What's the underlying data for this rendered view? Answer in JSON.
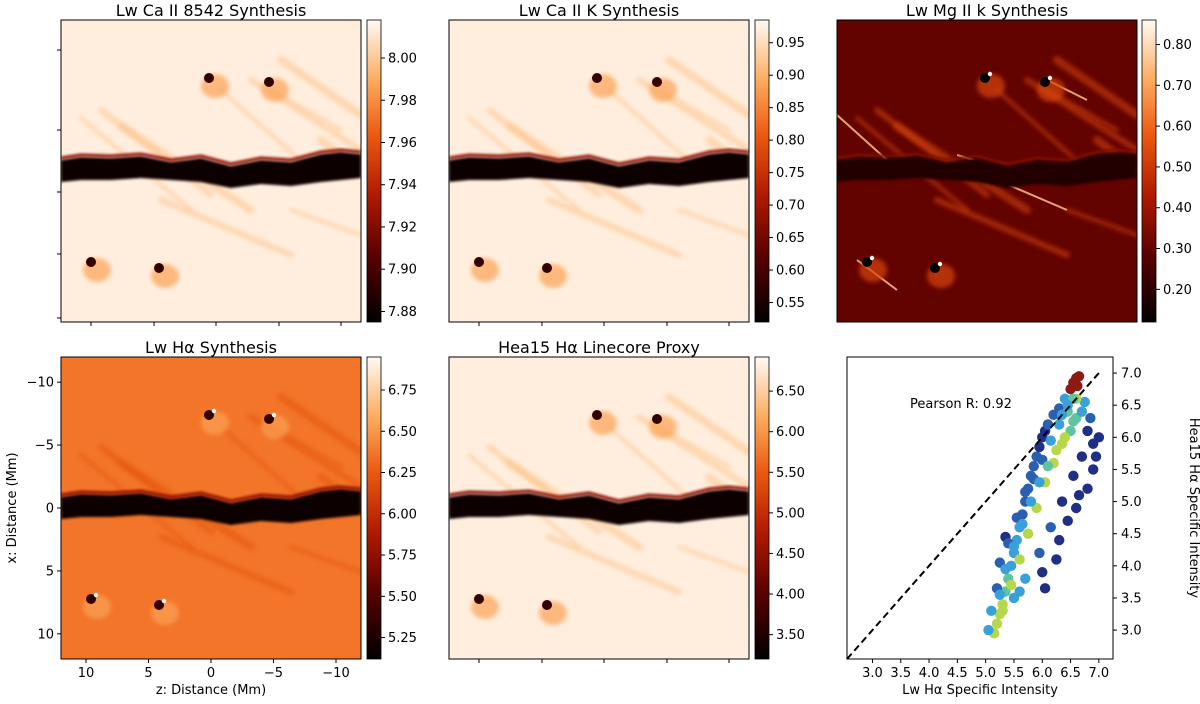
{
  "figure": {
    "colors": {
      "map_low": "#000000",
      "map_mid1": "#8b0000",
      "map_mid2": "#e0400a",
      "map_mid3": "#fd9a3c",
      "map_high": "#fff8f0",
      "dash": "#000000"
    }
  },
  "chart_data": [
    {
      "type": "heatmap",
      "title": "Lw Ca II 8542 Synthesis",
      "colorbar": {
        "range": [
          7.875,
          8.018
        ],
        "ticks": [
          "8.00",
          "7.98",
          "7.96",
          "7.94",
          "7.92",
          "7.90",
          "7.88"
        ],
        "tick_values": [
          8.0,
          7.98,
          7.96,
          7.94,
          7.92,
          7.9,
          7.88
        ]
      },
      "background_level": 0.97
    },
    {
      "type": "heatmap",
      "title": "Lw Ca II K Synthesis",
      "colorbar": {
        "range": [
          0.52,
          0.985
        ],
        "ticks": [
          "0.95",
          "0.90",
          "0.85",
          "0.80",
          "0.75",
          "0.70",
          "0.65",
          "0.60",
          "0.55"
        ],
        "tick_values": [
          0.95,
          0.9,
          0.85,
          0.8,
          0.75,
          0.7,
          0.65,
          0.6,
          0.55
        ]
      },
      "background_level": 0.97
    },
    {
      "type": "heatmap",
      "title": "Lw Mg II k Synthesis",
      "colorbar": {
        "range": [
          0.12,
          0.86
        ],
        "ticks": [
          "0.80",
          "0.70",
          "0.60",
          "0.50",
          "0.40",
          "0.30",
          "0.20"
        ],
        "tick_values": [
          0.8,
          0.7,
          0.6,
          0.5,
          0.4,
          0.3,
          0.2
        ]
      },
      "background_level": 0.24
    },
    {
      "type": "heatmap",
      "title": "Lw Hα Synthesis",
      "xlabel": "z: Distance (Mm)",
      "ylabel": "x: Distance (Mm)",
      "xlim": [
        12,
        -12
      ],
      "ylim": [
        12,
        -12
      ],
      "xticks": [
        "10",
        "5",
        "0",
        "−5",
        "−10"
      ],
      "xtick_values": [
        10,
        5,
        0,
        -5,
        -10
      ],
      "yticks": [
        "−10",
        "−5",
        "0",
        "5",
        "10"
      ],
      "ytick_values": [
        -10,
        -5,
        0,
        5,
        10
      ],
      "colorbar": {
        "range": [
          5.12,
          6.95
        ],
        "ticks": [
          "6.75",
          "6.50",
          "6.25",
          "6.00",
          "5.75",
          "5.50",
          "5.25"
        ],
        "tick_values": [
          6.75,
          6.5,
          6.25,
          6.0,
          5.75,
          5.5,
          5.25
        ]
      },
      "background_level": 0.68
    },
    {
      "type": "heatmap",
      "title": "Hea15 Hα Linecore Proxy",
      "colorbar": {
        "range": [
          3.2,
          6.92
        ],
        "ticks": [
          "6.50",
          "6.00",
          "5.50",
          "5.00",
          "4.50",
          "4.00",
          "3.50"
        ],
        "tick_values": [
          6.5,
          6.0,
          5.5,
          5.0,
          4.5,
          4.0,
          3.5
        ]
      },
      "background_level": 0.97
    },
    {
      "type": "scatter",
      "annotation": "Pearson R: 0.92",
      "xlabel": "Lw Hα Specific Intensity",
      "ylabel": "Hea15 Hα Specific Intensity",
      "xlim": [
        2.55,
        7.25
      ],
      "ylim": [
        2.55,
        7.25
      ],
      "xticks": [
        "3.0",
        "3.5",
        "4.0",
        "4.5",
        "5.0",
        "5.5",
        "6.0",
        "6.5",
        "7.0"
      ],
      "xtick_values": [
        3.0,
        3.5,
        4.0,
        4.5,
        5.0,
        5.5,
        6.0,
        6.5,
        7.0
      ],
      "yticks": [
        "3.0",
        "3.5",
        "4.0",
        "4.5",
        "5.0",
        "5.5",
        "6.0",
        "6.5",
        "7.0"
      ],
      "ytick_values": [
        3.0,
        3.5,
        4.0,
        4.5,
        5.0,
        5.5,
        6.0,
        6.5,
        7.0
      ],
      "reference_line": "y = x",
      "points": [
        [
          5.15,
          2.95
        ],
        [
          5.2,
          3.1
        ],
        [
          5.25,
          3.25
        ],
        [
          5.3,
          3.4
        ],
        [
          5.35,
          3.6
        ],
        [
          5.4,
          3.8
        ],
        [
          5.45,
          4.0
        ],
        [
          5.5,
          4.2
        ],
        [
          5.55,
          4.4
        ],
        [
          5.6,
          4.6
        ],
        [
          5.65,
          4.8
        ],
        [
          5.7,
          5.0
        ],
        [
          5.75,
          5.2
        ],
        [
          5.8,
          5.4
        ],
        [
          5.85,
          5.55
        ],
        [
          5.9,
          5.7
        ],
        [
          5.95,
          5.85
        ],
        [
          6.0,
          6.0
        ],
        [
          6.05,
          6.1
        ],
        [
          6.1,
          6.2
        ],
        [
          6.2,
          6.35
        ],
        [
          6.3,
          6.45
        ],
        [
          6.4,
          6.6
        ],
        [
          6.5,
          6.75
        ],
        [
          6.55,
          6.85
        ],
        [
          6.6,
          6.92
        ],
        [
          6.65,
          6.95
        ],
        [
          5.3,
          3.3
        ],
        [
          5.45,
          3.7
        ],
        [
          5.6,
          4.1
        ],
        [
          5.75,
          4.5
        ],
        [
          5.9,
          4.9
        ],
        [
          6.05,
          5.3
        ],
        [
          6.2,
          5.6
        ],
        [
          6.35,
          5.9
        ],
        [
          6.5,
          6.1
        ],
        [
          6.6,
          6.3
        ],
        [
          6.7,
          6.4
        ],
        [
          6.8,
          6.1
        ],
        [
          6.9,
          5.9
        ],
        [
          6.85,
          6.3
        ],
        [
          6.75,
          6.55
        ],
        [
          5.5,
          3.5
        ],
        [
          5.7,
          3.8
        ],
        [
          5.95,
          4.2
        ],
        [
          6.15,
          4.6
        ],
        [
          6.35,
          5.0
        ],
        [
          6.55,
          5.4
        ],
        [
          6.7,
          5.7
        ],
        [
          6.9,
          5.5
        ],
        [
          6.0,
          3.9
        ],
        [
          6.3,
          4.4
        ],
        [
          6.6,
          4.9
        ],
        [
          6.8,
          5.2
        ],
        [
          5.2,
          3.65
        ],
        [
          5.25,
          4.05
        ],
        [
          5.35,
          4.45
        ],
        [
          5.1,
          3.3
        ],
        [
          5.05,
          3.0
        ],
        [
          5.6,
          3.6
        ],
        [
          6.45,
          4.7
        ],
        [
          6.25,
          4.1
        ],
        [
          6.65,
          5.1
        ],
        [
          6.95,
          5.7
        ],
        [
          7.0,
          6.0
        ],
        [
          6.05,
          3.65
        ],
        [
          5.4,
          4.35
        ],
        [
          5.55,
          4.75
        ],
        [
          5.7,
          5.15
        ],
        [
          5.85,
          5.35
        ],
        [
          6.0,
          5.65
        ],
        [
          6.15,
          5.95
        ],
        [
          6.3,
          6.2
        ],
        [
          6.45,
          6.4
        ],
        [
          5.25,
          3.55
        ],
        [
          5.35,
          3.95
        ],
        [
          5.5,
          4.3
        ],
        [
          5.65,
          4.65
        ],
        [
          5.8,
          5.0
        ],
        [
          5.95,
          5.3
        ],
        [
          6.1,
          5.55
        ],
        [
          6.25,
          5.8
        ],
        [
          6.4,
          6.0
        ],
        [
          6.55,
          6.25
        ],
        [
          6.6,
          6.6
        ],
        [
          6.62,
          6.8
        ],
        [
          6.55,
          6.6
        ],
        [
          6.45,
          6.5
        ],
        [
          6.35,
          6.35
        ]
      ]
    }
  ]
}
